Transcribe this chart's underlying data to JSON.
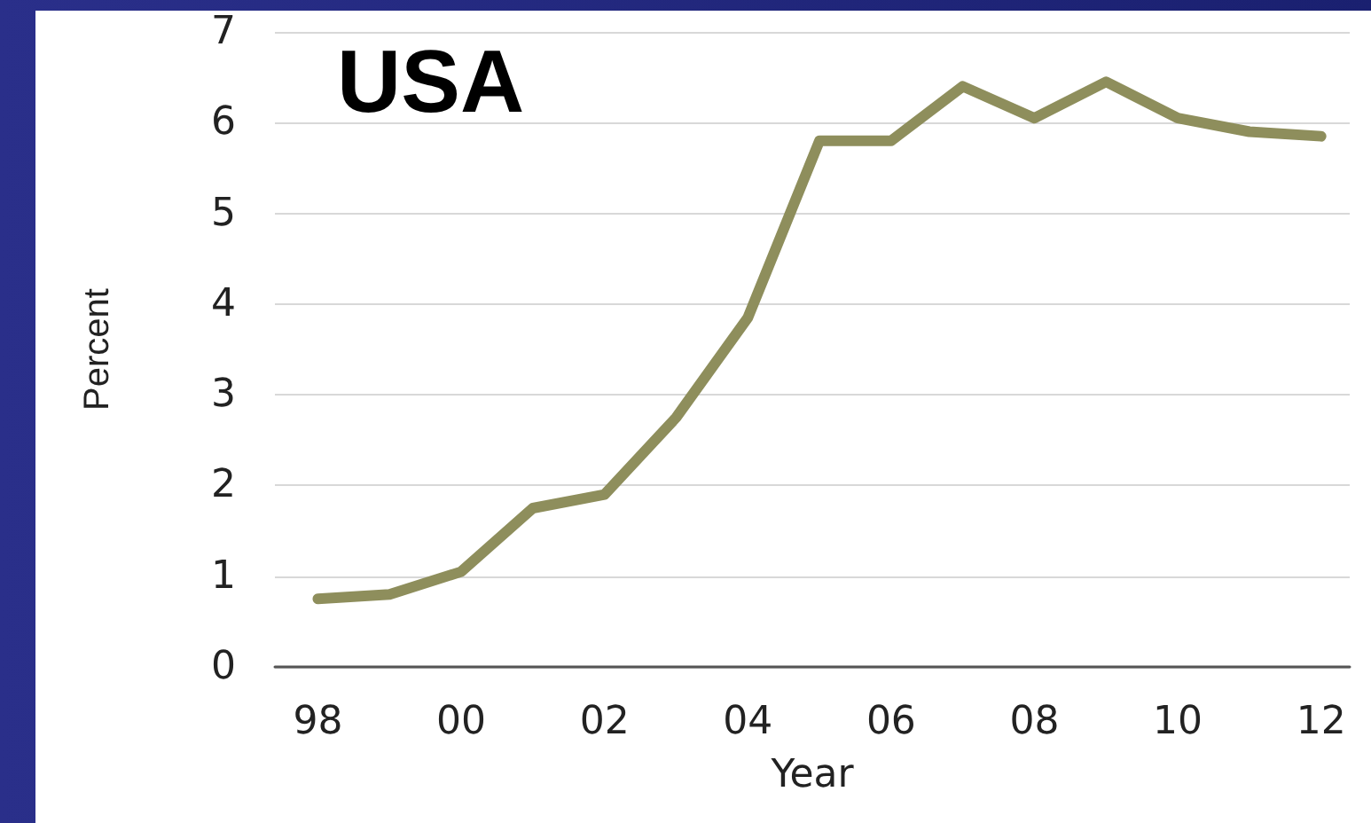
{
  "chart_data": {
    "type": "line",
    "title": "USA",
    "xlabel": "Year",
    "ylabel": "Percent",
    "x": [
      1998,
      1999,
      2000,
      2001,
      2002,
      2003,
      2004,
      2005,
      2006,
      2007,
      2008,
      2009,
      2010,
      2011,
      2012
    ],
    "series": [
      {
        "color": "#8e8e5c",
        "values": [
          0.75,
          0.8,
          1.05,
          1.75,
          1.9,
          2.75,
          3.85,
          5.8,
          5.8,
          6.4,
          6.05,
          6.45,
          6.05,
          5.9,
          5.85
        ]
      }
    ],
    "xlim": [
      1997.4,
      2012.4
    ],
    "xticks": [
      {
        "value": 1998,
        "label": "98"
      },
      {
        "value": 2000,
        "label": "00"
      },
      {
        "value": 2002,
        "label": "02"
      },
      {
        "value": 2004,
        "label": "04"
      },
      {
        "value": 2006,
        "label": "06"
      },
      {
        "value": 2008,
        "label": "08"
      },
      {
        "value": 2010,
        "label": "10"
      },
      {
        "value": 2012,
        "label": "12"
      }
    ],
    "ylim": [
      0,
      7
    ],
    "yticks": [
      0,
      1,
      2,
      3,
      4,
      5,
      6,
      7
    ],
    "grid": "y",
    "marker": "none",
    "line_style": "solid"
  }
}
